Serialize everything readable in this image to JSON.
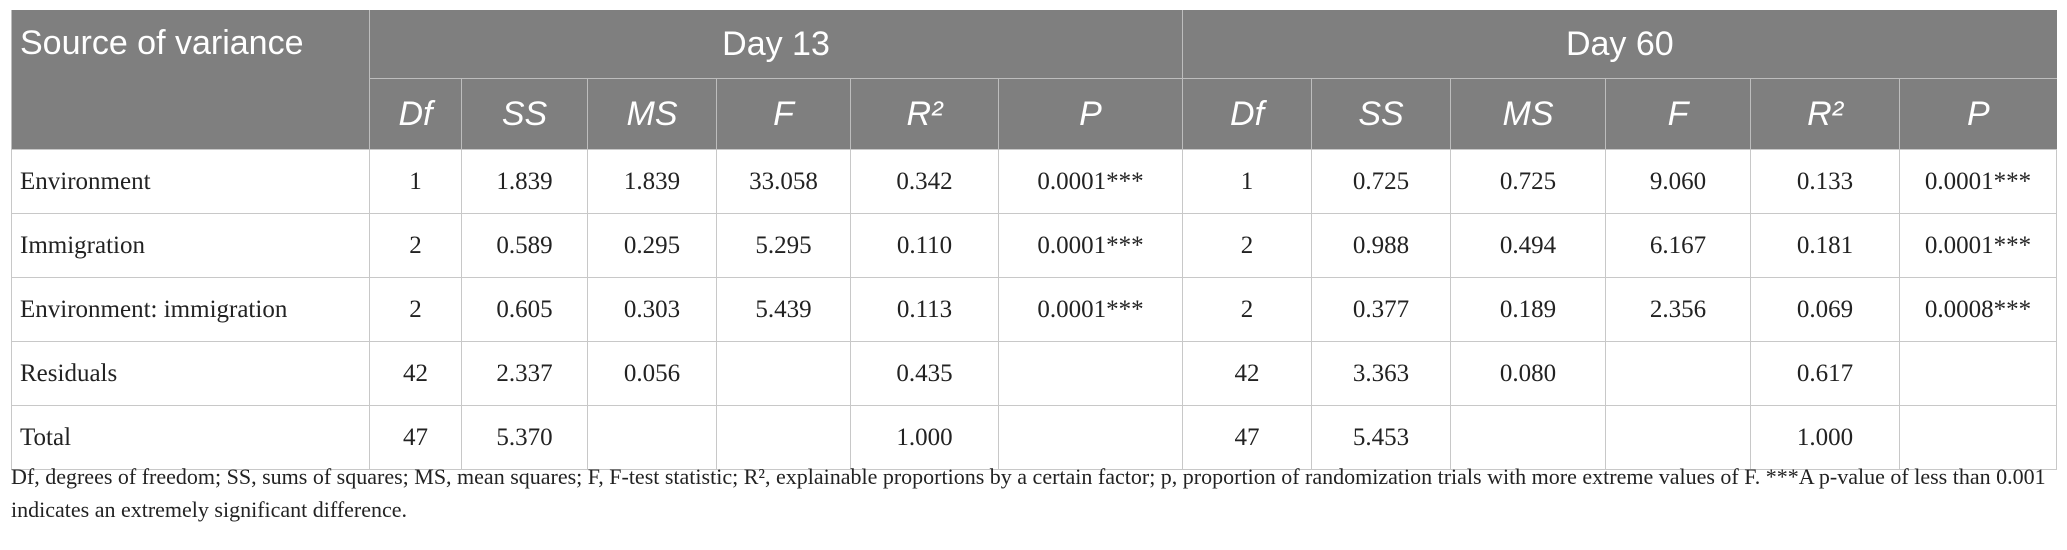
{
  "table": {
    "header": {
      "source": "Source of variance",
      "groups": [
        "Day 13",
        "Day 60"
      ],
      "columns": [
        "Df",
        "SS",
        "MS",
        "F",
        "R²",
        "P",
        "Df",
        "SS",
        "MS",
        "F",
        "R²",
        "P"
      ]
    },
    "rows": [
      [
        "Environment",
        "1",
        "1.839",
        "1.839",
        "33.058",
        "0.342",
        "0.0001***",
        "1",
        "0.725",
        "0.725",
        "9.060",
        "0.133",
        "0.0001***"
      ],
      [
        "Immigration",
        "2",
        "0.589",
        "0.295",
        "5.295",
        "0.110",
        "0.0001***",
        "2",
        "0.988",
        "0.494",
        "6.167",
        "0.181",
        "0.0001***"
      ],
      [
        "Environment: immigration",
        "2",
        "0.605",
        "0.303",
        "5.439",
        "0.113",
        "0.0001***",
        "2",
        "0.377",
        "0.189",
        "2.356",
        "0.069",
        "0.0008***"
      ],
      [
        "Residuals",
        "42",
        "2.337",
        "0.056",
        null,
        "0.435",
        null,
        "42",
        "3.363",
        "0.080",
        null,
        "0.617",
        null
      ],
      [
        "Total",
        "47",
        "5.370",
        null,
        null,
        "1.000",
        null,
        "47",
        "5.453",
        null,
        null,
        "1.000",
        null
      ]
    ]
  },
  "footnote": "Df, degrees of freedom; SS, sums of squares; MS, mean squares; F, F-test statistic; R², explainable proportions by a certain factor; p, proportion of randomization trials with more extreme values of F. ***A p-value of less than 0.001 indicates an extremely significant difference."
}
